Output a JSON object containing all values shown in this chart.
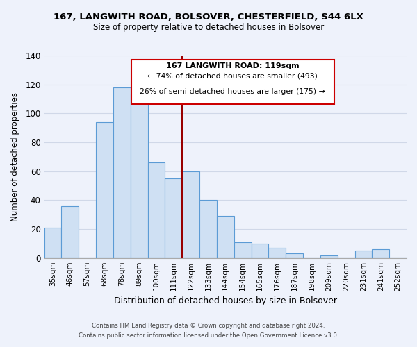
{
  "title1": "167, LANGWITH ROAD, BOLSOVER, CHESTERFIELD, S44 6LX",
  "title2": "Size of property relative to detached houses in Bolsover",
  "xlabel": "Distribution of detached houses by size in Bolsover",
  "ylabel": "Number of detached properties",
  "bin_labels": [
    "35sqm",
    "46sqm",
    "57sqm",
    "68sqm",
    "78sqm",
    "89sqm",
    "100sqm",
    "111sqm",
    "122sqm",
    "133sqm",
    "144sqm",
    "154sqm",
    "165sqm",
    "176sqm",
    "187sqm",
    "198sqm",
    "209sqm",
    "220sqm",
    "231sqm",
    "241sqm",
    "252sqm"
  ],
  "bar_heights": [
    21,
    36,
    0,
    94,
    118,
    113,
    66,
    55,
    60,
    40,
    29,
    11,
    10,
    7,
    3,
    0,
    2,
    0,
    5,
    6,
    0
  ],
  "bar_color": "#cfe0f3",
  "bar_edge_color": "#5b9bd5",
  "vline_color": "#990000",
  "annotation_line1": "167 LANGWITH ROAD: 119sqm",
  "annotation_line2": "← 74% of detached houses are smaller (493)",
  "annotation_line3": "26% of semi-detached houses are larger (175) →",
  "box_edge_color": "#cc0000",
  "footer1": "Contains HM Land Registry data © Crown copyright and database right 2024.",
  "footer2": "Contains public sector information licensed under the Open Government Licence v3.0.",
  "ylim": [
    0,
    140
  ],
  "yticks": [
    0,
    20,
    40,
    60,
    80,
    100,
    120,
    140
  ],
  "background_color": "#eef2fb",
  "grid_color": "#d0d8e8"
}
